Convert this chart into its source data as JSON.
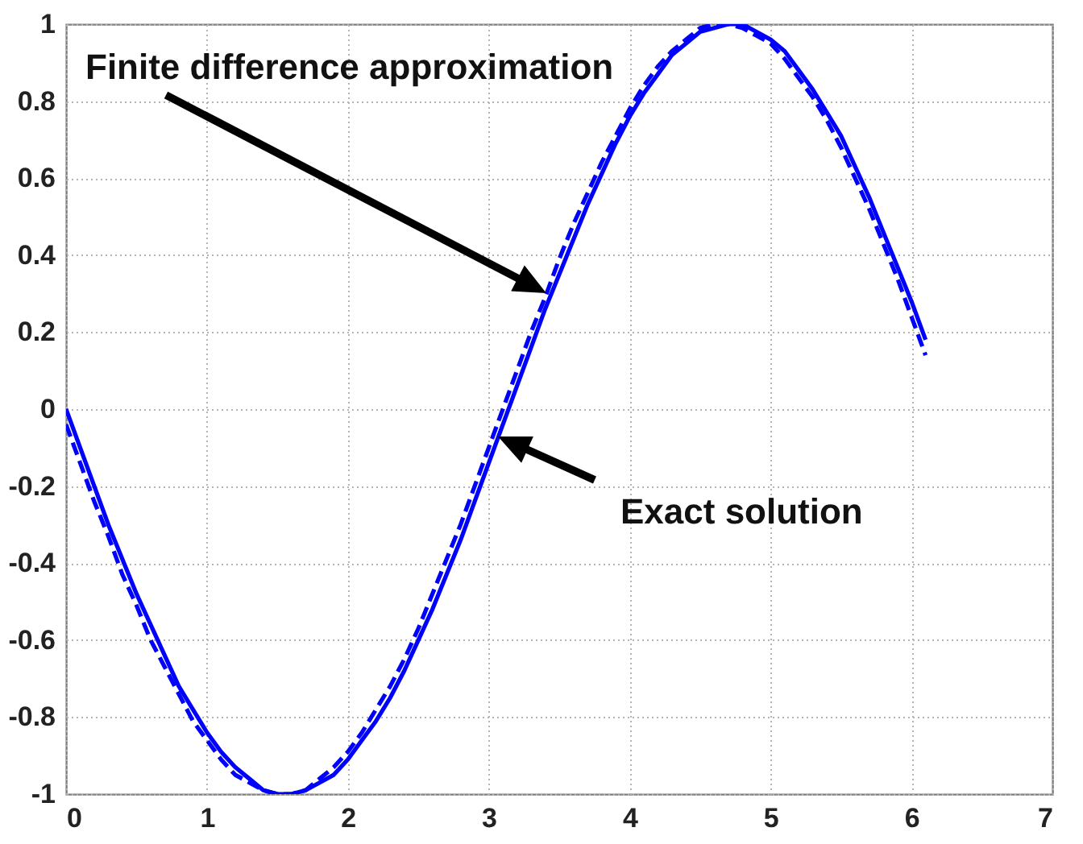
{
  "chart_data": {
    "type": "line",
    "x": [
      0,
      0.1,
      0.2,
      0.3,
      0.4,
      0.5,
      0.6,
      0.7,
      0.8,
      0.9,
      1.0,
      1.1,
      1.2,
      1.3,
      1.4,
      1.5,
      1.6,
      1.7,
      1.8,
      1.9,
      2.0,
      2.1,
      2.2,
      2.3,
      2.4,
      2.5,
      2.6,
      2.7,
      2.8,
      2.9,
      3.0,
      3.1,
      3.2,
      3.3,
      3.4,
      3.5,
      3.6,
      3.7,
      3.8,
      3.9,
      4.0,
      4.1,
      4.2,
      4.3,
      4.4,
      4.5,
      4.6,
      4.7,
      4.8,
      4.9,
      5.0,
      5.1,
      5.2,
      5.3,
      5.4,
      5.5,
      5.6,
      5.7,
      5.8,
      5.9,
      6.0,
      6.1
    ],
    "series": [
      {
        "color": "#0000ff",
        "line_style": "solid",
        "values": [
          0,
          -0.1,
          -0.2,
          -0.3,
          -0.39,
          -0.48,
          -0.56,
          -0.64,
          -0.72,
          -0.78,
          -0.84,
          -0.89,
          -0.93,
          -0.96,
          -0.99,
          -1,
          -1,
          -0.99,
          -0.97,
          -0.95,
          -0.91,
          -0.86,
          -0.81,
          -0.75,
          -0.68,
          -0.6,
          -0.52,
          -0.43,
          -0.34,
          -0.24,
          -0.14,
          -0.04,
          0.06,
          0.16,
          0.26,
          0.35,
          0.44,
          0.53,
          0.61,
          0.69,
          0.76,
          0.82,
          0.87,
          0.92,
          0.95,
          0.98,
          0.99,
          1,
          1,
          0.98,
          0.96,
          0.93,
          0.88,
          0.83,
          0.77,
          0.71,
          0.63,
          0.55,
          0.46,
          0.37,
          0.28,
          0.18
        ]
      },
      {
        "color": "#0000ff",
        "line_style": "dashed",
        "values": [
          -0.04,
          -0.14,
          -0.24,
          -0.33,
          -0.43,
          -0.51,
          -0.6,
          -0.67,
          -0.74,
          -0.81,
          -0.86,
          -0.91,
          -0.95,
          -0.97,
          -0.99,
          -1,
          -1,
          -0.99,
          -0.96,
          -0.93,
          -0.89,
          -0.84,
          -0.78,
          -0.72,
          -0.65,
          -0.57,
          -0.48,
          -0.39,
          -0.3,
          -0.2,
          -0.1,
          0,
          0.1,
          0.2,
          0.29,
          0.39,
          0.48,
          0.56,
          0.64,
          0.71,
          0.78,
          0.84,
          0.89,
          0.93,
          0.96,
          0.99,
          1,
          1,
          0.99,
          0.97,
          0.95,
          0.91,
          0.86,
          0.81,
          0.75,
          0.68,
          0.6,
          0.52,
          0.43,
          0.34,
          0.24,
          0.14
        ]
      }
    ],
    "xlim": [
      0,
      7
    ],
    "ylim": [
      -1,
      1
    ],
    "xticks": [
      0,
      1,
      2,
      3,
      4,
      5,
      6,
      7
    ],
    "yticks": [
      -1,
      -0.8,
      -0.6,
      -0.4,
      -0.2,
      0,
      0.2,
      0.4,
      0.6,
      0.8,
      1
    ],
    "grid": true,
    "annotations": [
      "Finite difference approximation",
      "Exact solution"
    ]
  }
}
